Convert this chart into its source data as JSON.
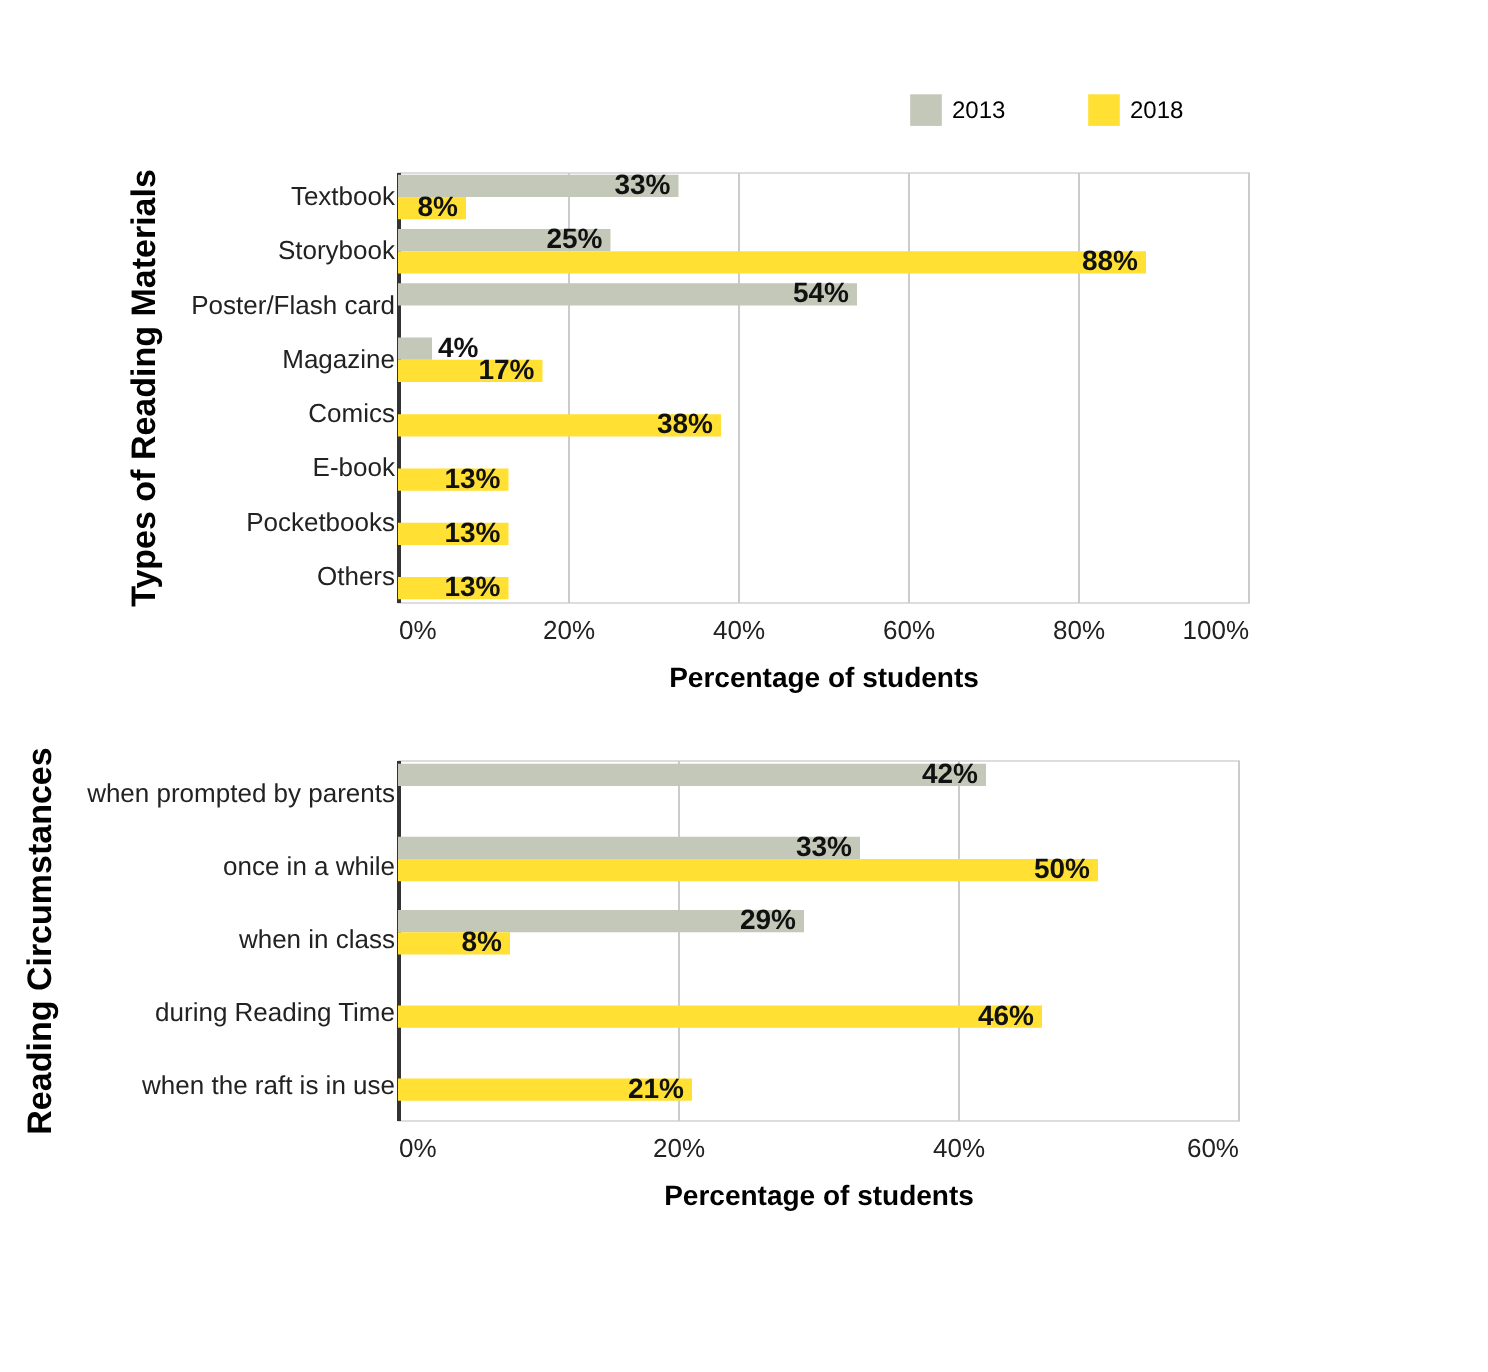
{
  "chart_data": [
    {
      "type": "bar",
      "orientation": "horizontal",
      "ylabel": "Types of Reading Materials",
      "xlabel": "Percentage of students",
      "categories": [
        "Textbook",
        "Storybook",
        "Poster/Flash card",
        "Magazine",
        "Comics",
        "E-book",
        "Pocketbooks",
        "Others"
      ],
      "series": [
        {
          "name": "2013",
          "color": "#c3c8b8",
          "values": [
            33,
            25,
            54,
            4,
            null,
            null,
            null,
            null
          ],
          "value_labels": [
            "33%",
            "25%",
            "54%",
            "4%",
            null,
            null,
            null,
            null
          ]
        },
        {
          "name": "2018",
          "color": "#ffe033",
          "values": [
            8,
            88,
            null,
            17,
            38,
            13,
            13,
            13
          ],
          "value_labels": [
            "8%",
            "88%",
            null,
            "17%",
            "38%",
            "13%",
            "13%",
            "13%"
          ]
        }
      ],
      "xlim": [
        0,
        100
      ],
      "xticks": [
        {
          "value": 0,
          "label": "0%"
        },
        {
          "value": 20,
          "label": "20%"
        },
        {
          "value": 40,
          "label": "40%"
        },
        {
          "value": 60,
          "label": "60%"
        },
        {
          "value": 80,
          "label": "80%"
        },
        {
          "value": 100,
          "label": "100%"
        }
      ],
      "grid": "x",
      "legend": "top right"
    },
    {
      "type": "bar",
      "orientation": "horizontal",
      "ylabel": "Reading Circumstances",
      "xlabel": "Percentage of students",
      "categories": [
        "when prompted by parents",
        "once in a while",
        "when in class",
        "during Reading Time",
        "when the raft is in use"
      ],
      "series": [
        {
          "name": "2013",
          "color": "#c3c8b8",
          "values": [
            42,
            33,
            29,
            null,
            null
          ],
          "value_labels": [
            "42%",
            "33%",
            "29%",
            null,
            null
          ]
        },
        {
          "name": "2018",
          "color": "#ffe033",
          "values": [
            null,
            50,
            8,
            46,
            21
          ],
          "value_labels": [
            null,
            "50%",
            "8%",
            "46%",
            "21%"
          ]
        }
      ],
      "xlim": [
        0,
        60
      ],
      "xticks": [
        {
          "value": 0,
          "label": "0%"
        },
        {
          "value": 20,
          "label": "20%"
        },
        {
          "value": 40,
          "label": "40%"
        },
        {
          "value": 60,
          "label": "60%"
        }
      ],
      "grid": "x"
    }
  ]
}
